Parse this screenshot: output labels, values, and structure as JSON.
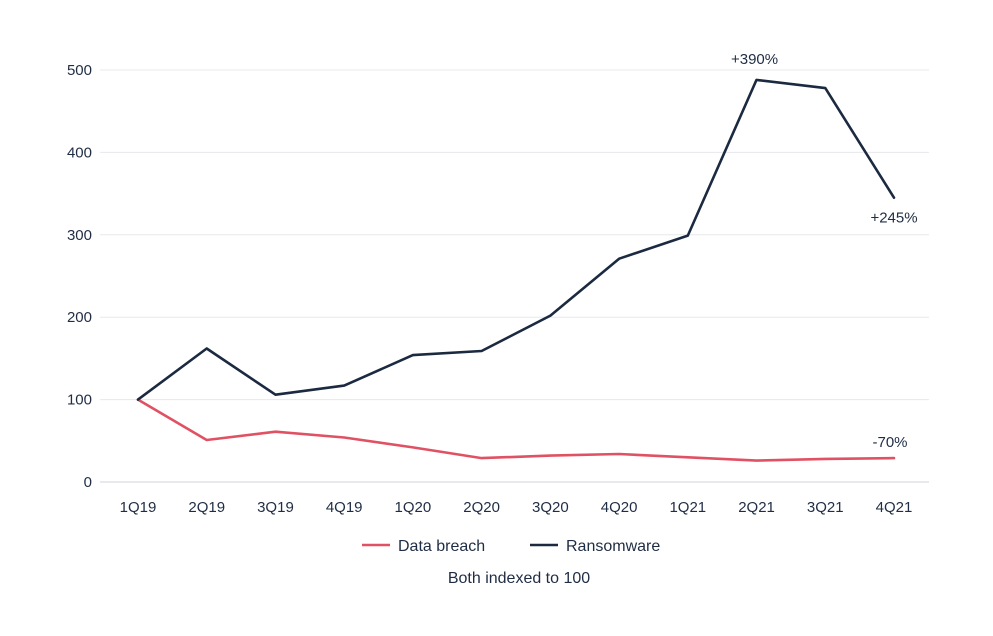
{
  "chart_data": {
    "type": "line",
    "categories": [
      "1Q19",
      "2Q19",
      "3Q19",
      "4Q19",
      "1Q20",
      "2Q20",
      "3Q20",
      "4Q20",
      "1Q21",
      "2Q21",
      "3Q21",
      "4Q21"
    ],
    "series": [
      {
        "name": "Data breach",
        "color": "#e05263",
        "values": [
          100,
          51,
          61,
          54,
          42,
          29,
          32,
          34,
          30,
          26,
          28,
          29
        ]
      },
      {
        "name": "Ransomware",
        "color": "#1b2a40",
        "values": [
          100,
          162,
          106,
          117,
          154,
          159,
          202,
          271,
          299,
          488,
          478,
          345
        ]
      }
    ],
    "ylim": [
      0,
      500
    ],
    "yticks": [
      0,
      100,
      200,
      300,
      400,
      500
    ],
    "grid": true,
    "legend_position": "bottom",
    "annotations": [
      {
        "text": "+390%",
        "series": "Ransomware",
        "category": "2Q21"
      },
      {
        "text": "+245%",
        "series": "Ransomware",
        "category": "4Q21"
      },
      {
        "text": "-70%",
        "series": "Data breach",
        "category": "4Q21"
      }
    ],
    "note": "Both indexed to 100"
  }
}
